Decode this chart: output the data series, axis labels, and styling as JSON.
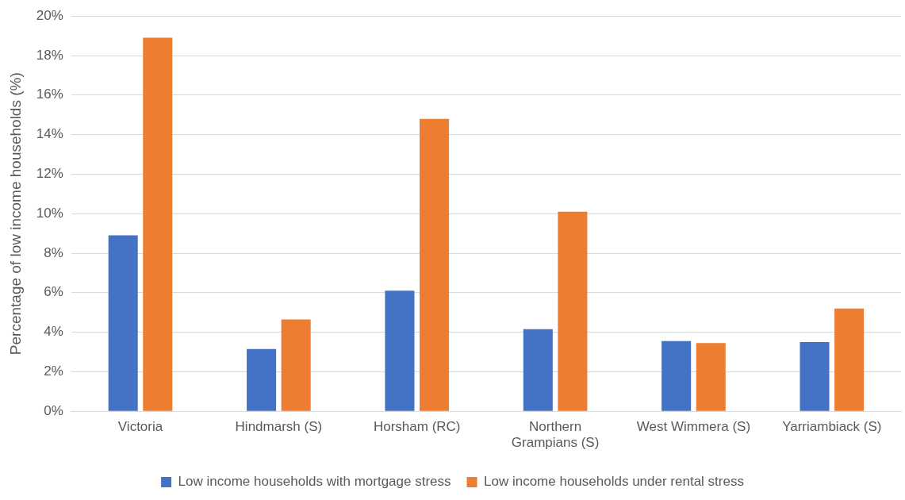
{
  "chart_data": {
    "type": "bar",
    "ylabel": "Percentage of low income households (%)",
    "categories": [
      "Victoria",
      "Hindmarsh (S)",
      "Horsham (RC)",
      "Northern Grampians (S)",
      "West Wimmera (S)",
      "Yarriambiack (S)"
    ],
    "series": [
      {
        "name": "Low income households with mortgage stress",
        "color": "#4472c4",
        "values": [
          8.9,
          3.15,
          6.1,
          4.15,
          3.55,
          3.5
        ]
      },
      {
        "name": "Low income households under rental stress",
        "color": "#ed7d31",
        "values": [
          18.9,
          4.65,
          14.8,
          10.1,
          3.45,
          5.2
        ]
      }
    ],
    "ylim": [
      0,
      20
    ],
    "yticks": [
      {
        "value": 0,
        "label": "0%"
      },
      {
        "value": 2,
        "label": "2%"
      },
      {
        "value": 4,
        "label": "4%"
      },
      {
        "value": 6,
        "label": "6%"
      },
      {
        "value": 8,
        "label": "8%"
      },
      {
        "value": 10,
        "label": "10%"
      },
      {
        "value": 12,
        "label": "12%"
      },
      {
        "value": 14,
        "label": "14%"
      },
      {
        "value": 16,
        "label": "16%"
      },
      {
        "value": 18,
        "label": "18%"
      },
      {
        "value": 20,
        "label": "20%"
      }
    ],
    "grid": "y",
    "legend": "bottom"
  }
}
